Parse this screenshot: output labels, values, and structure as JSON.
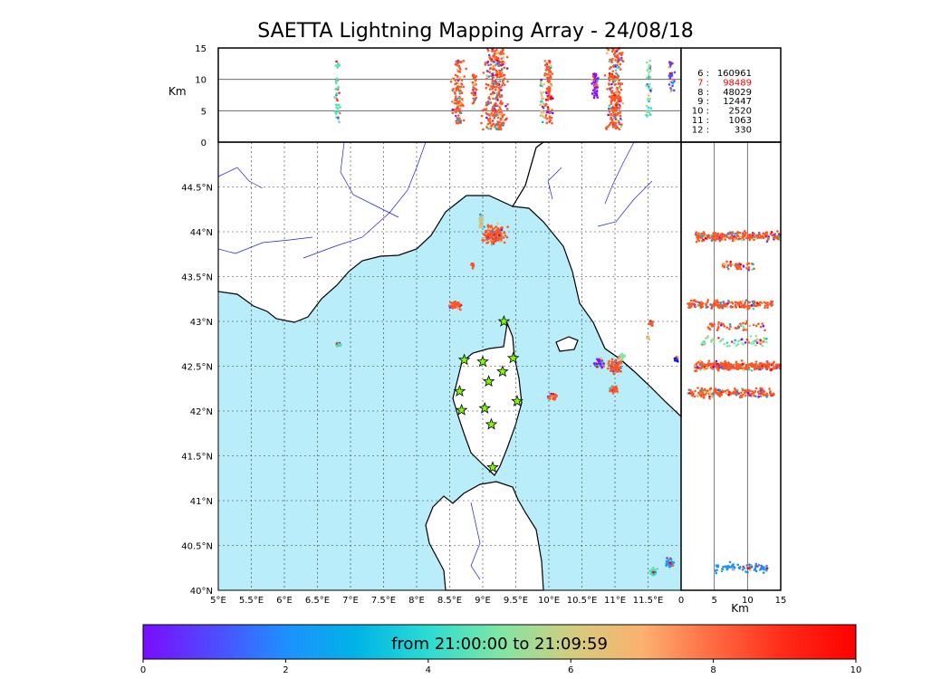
{
  "title": "SAETTA Lightning Mapping Array - 24/08/18",
  "colorbar": {
    "label": "from 21:00:00 to 21:09:59",
    "ticks": [
      "0",
      "2",
      "4",
      "6",
      "8",
      "10"
    ],
    "range": [
      0,
      10
    ],
    "colors": [
      "#7a0dff",
      "#4f4bff",
      "#1e90ff",
      "#00b4e6",
      "#2bdcd2",
      "#7fe6a4",
      "#d2cd7f",
      "#fbb16f",
      "#ff6a42",
      "#ff2a18",
      "#ff0000"
    ]
  },
  "counts": {
    "rows": [
      {
        "label": "6  :",
        "value": "160961",
        "color": "#000000"
      },
      {
        "label": "7  :",
        "value": "98489",
        "color": "#ff0000"
      },
      {
        "label": "8  :",
        "value": "48029",
        "color": "#000000"
      },
      {
        "label": "9  :",
        "value": "12447",
        "color": "#000000"
      },
      {
        "label": "10  :",
        "value": "2520",
        "color": "#000000"
      },
      {
        "label": "11  :",
        "value": "1063",
        "color": "#000000"
      },
      {
        "label": "12  :",
        "value": "330",
        "color": "#000000"
      }
    ]
  },
  "chart_data": [
    {
      "panel": "map",
      "type": "scatter",
      "xlim": [
        5,
        12
      ],
      "ylim": [
        40,
        45
      ],
      "x_ticks": [
        "5°E",
        "5.5°E",
        "6°E",
        "6.5°E",
        "7°E",
        "7.5°E",
        "8°E",
        "8.5°E",
        "9°E",
        "9.5°E",
        "10°E",
        "10.5°E",
        "11°E",
        "11.5°E"
      ],
      "y_ticks": [
        "40°N",
        "40.5°N",
        "41°N",
        "41.5°N",
        "42°N",
        "42.5°N",
        "43°N",
        "43.5°N",
        "44°N",
        "44.5°N"
      ],
      "grid": true,
      "colors": {
        "sea": "#b9edfa",
        "land": "#ffffff",
        "coast": "#000000",
        "rivers": "#1a1aff",
        "stars": "#7cfc00"
      },
      "stations": [
        [
          9.32,
          43.0
        ],
        [
          9.46,
          42.59
        ],
        [
          9.3,
          42.44
        ],
        [
          8.72,
          42.57
        ],
        [
          9.0,
          42.55
        ],
        [
          9.09,
          42.33
        ],
        [
          8.65,
          42.22
        ],
        [
          8.68,
          42.01
        ],
        [
          9.03,
          42.03
        ],
        [
          9.13,
          41.85
        ],
        [
          9.52,
          42.11
        ],
        [
          9.15,
          41.37
        ]
      ],
      "clusters": [
        {
          "lon": 9.17,
          "lat": 43.97,
          "rx": 0.22,
          "ry": 0.13,
          "color": "#ff5522",
          "n": 220
        },
        {
          "lon": 8.97,
          "lat": 44.12,
          "rx": 0.04,
          "ry": 0.12,
          "color": "#d9c27a",
          "n": 40
        },
        {
          "lon": 8.85,
          "lat": 43.62,
          "rx": 0.03,
          "ry": 0.04,
          "color": "#ff5522",
          "n": 15
        },
        {
          "lon": 8.58,
          "lat": 43.18,
          "rx": 0.12,
          "ry": 0.06,
          "color": "#ff5522",
          "n": 80
        },
        {
          "lon": 6.82,
          "lat": 42.74,
          "rx": 0.06,
          "ry": 0.03,
          "color": "#55e0b0",
          "n": 25
        },
        {
          "lon": 10.05,
          "lat": 42.16,
          "rx": 0.09,
          "ry": 0.05,
          "color": "#ff5522",
          "n": 40
        },
        {
          "lon": 10.77,
          "lat": 42.53,
          "rx": 0.11,
          "ry": 0.08,
          "color": "#8b10ff",
          "n": 45
        },
        {
          "lon": 11.0,
          "lat": 42.5,
          "rx": 0.13,
          "ry": 0.11,
          "color": "#ff5522",
          "n": 110
        },
        {
          "lon": 10.98,
          "lat": 42.24,
          "rx": 0.08,
          "ry": 0.06,
          "color": "#ff5522",
          "n": 40
        },
        {
          "lon": 11.1,
          "lat": 42.6,
          "rx": 0.06,
          "ry": 0.05,
          "color": "#7fe6a4",
          "n": 20
        },
        {
          "lon": 11.55,
          "lat": 42.98,
          "rx": 0.04,
          "ry": 0.04,
          "color": "#ff5522",
          "n": 20
        },
        {
          "lon": 11.5,
          "lat": 42.82,
          "rx": 0.03,
          "ry": 0.04,
          "color": "#d9c27a",
          "n": 10
        },
        {
          "lon": 11.93,
          "lat": 42.58,
          "rx": 0.05,
          "ry": 0.05,
          "color": "#0011ee",
          "n": 20
        },
        {
          "lon": 11.83,
          "lat": 40.3,
          "rx": 0.09,
          "ry": 0.07,
          "color": "#1e90ff",
          "n": 40
        },
        {
          "lon": 11.58,
          "lat": 40.2,
          "rx": 0.08,
          "ry": 0.06,
          "color": "#55e0b0",
          "n": 35
        }
      ]
    },
    {
      "panel": "lon-altitude",
      "type": "scatter",
      "xlim": [
        5,
        12
      ],
      "ylim": [
        0,
        15
      ],
      "y_ticks": [
        "0",
        "5",
        "10",
        "15"
      ],
      "ylabel": "Km",
      "columns": [
        {
          "lon": 6.8,
          "rx": 0.05,
          "zmin": 3,
          "zmax": 13,
          "color": "#55e0b0",
          "n": 40
        },
        {
          "lon": 8.63,
          "rx": 0.13,
          "zmin": 3,
          "zmax": 13,
          "color": "#ff5522",
          "n": 120
        },
        {
          "lon": 8.87,
          "rx": 0.05,
          "zmin": 6,
          "zmax": 11,
          "color": "#ff5522",
          "n": 40
        },
        {
          "lon": 9.2,
          "rx": 0.24,
          "zmin": 2,
          "zmax": 15,
          "color": "#ff5522",
          "n": 320
        },
        {
          "lon": 10.0,
          "rx": 0.08,
          "zmin": 3,
          "zmax": 13,
          "color": "#ff5522",
          "n": 100
        },
        {
          "lon": 9.9,
          "rx": 0.05,
          "zmin": 3,
          "zmax": 10,
          "color": "#d9c27a",
          "n": 30
        },
        {
          "lon": 10.7,
          "rx": 0.06,
          "zmin": 7,
          "zmax": 11,
          "color": "#8b10ff",
          "n": 60
        },
        {
          "lon": 11.0,
          "rx": 0.17,
          "zmin": 2,
          "zmax": 15,
          "color": "#ff5522",
          "n": 240
        },
        {
          "lon": 11.52,
          "rx": 0.06,
          "zmin": 4,
          "zmax": 13,
          "color": "#7fe6a4",
          "n": 45
        },
        {
          "lon": 11.85,
          "rx": 0.07,
          "zmin": 8,
          "zmax": 13,
          "color": "#4f4bff",
          "n": 30
        }
      ]
    },
    {
      "panel": "altitude-lat",
      "type": "scatter",
      "xlim": [
        0,
        15
      ],
      "ylim": [
        40,
        45
      ],
      "x_ticks": [
        "0",
        "5",
        "10",
        "15"
      ],
      "xlabel": "Km",
      "bands": [
        {
          "lat": 43.95,
          "zmin": 2,
          "zmax": 15,
          "color": "#ff5522",
          "n": 260
        },
        {
          "lat": 43.62,
          "zmin": 6,
          "zmax": 11,
          "color": "#ff5522",
          "n": 50
        },
        {
          "lat": 43.19,
          "zmin": 1,
          "zmax": 14,
          "color": "#ff5522",
          "n": 180
        },
        {
          "lat": 42.95,
          "zmin": 4,
          "zmax": 13,
          "color": "#ff5522",
          "n": 50
        },
        {
          "lat": 42.78,
          "zmin": 3,
          "zmax": 13,
          "color": "#7fe6a4",
          "n": 60
        },
        {
          "lat": 42.5,
          "zmin": 2,
          "zmax": 15,
          "color": "#ff5522",
          "n": 320
        },
        {
          "lat": 42.2,
          "zmin": 1,
          "zmax": 14,
          "color": "#ff5522",
          "n": 200
        },
        {
          "lat": 40.25,
          "zmin": 5,
          "zmax": 13,
          "color": "#1e90ff",
          "n": 80
        }
      ]
    }
  ]
}
